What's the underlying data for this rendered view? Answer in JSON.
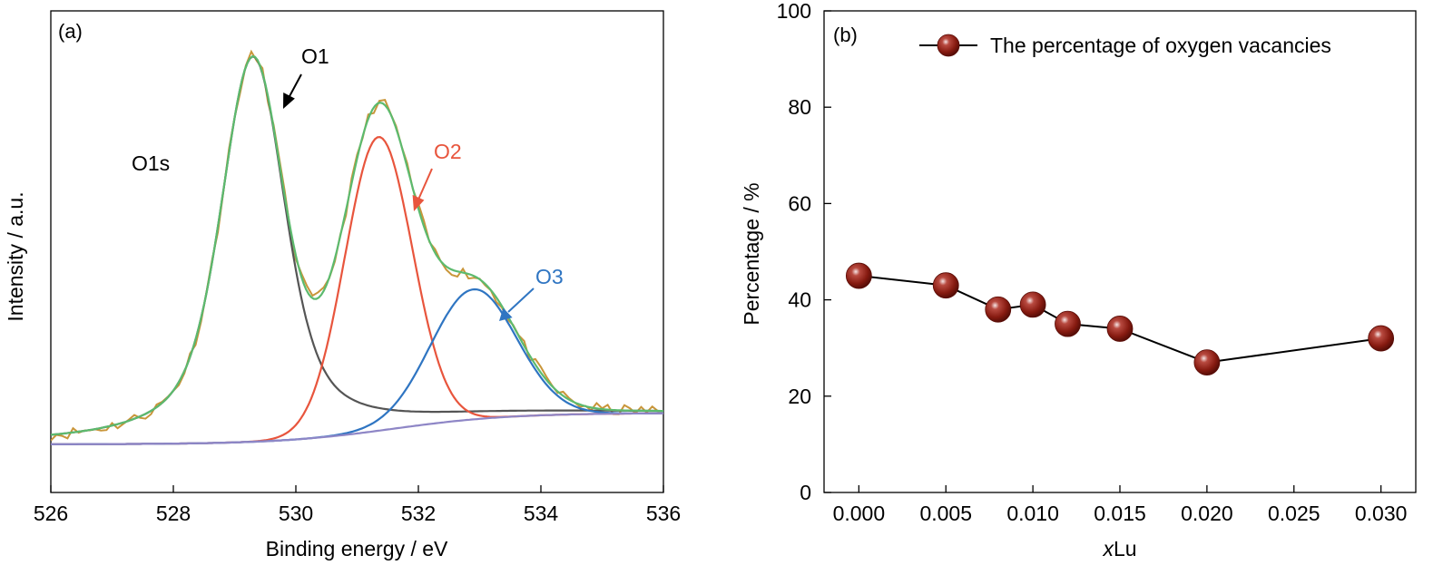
{
  "chart_data": [
    {
      "type": "line",
      "panel_label": "(a)",
      "xlabel": "Binding energy / eV",
      "ylabel": "Intensity / a.u.",
      "xlim": [
        526,
        536
      ],
      "ylim": [
        0,
        1.0
      ],
      "x_ticks": [
        526,
        528,
        530,
        532,
        534,
        536
      ],
      "y_ticks_shown": false,
      "grid": false,
      "legend": "none",
      "annotations": [
        {
          "text": "O1s",
          "color": "#000000"
        },
        {
          "text": "O1",
          "color": "#000000",
          "points_to": [
            529.8,
            0.868
          ]
        },
        {
          "text": "O2",
          "color": "#e8553d",
          "points_to": [
            531.6,
            0.68
          ]
        },
        {
          "text": "O3",
          "color": "#2f75c2",
          "points_to": [
            533.4,
            0.358
          ]
        }
      ],
      "series": [
        {
          "color": "#ffffff",
          "kind": "measured",
          "noise_amplitude": 0.012
        },
        {
          "color": "#5cba6e",
          "kind": "envelope"
        },
        {
          "color": "#555555",
          "kind": "peak",
          "center": 529.3,
          "height": 0.8,
          "sigma": 0.48,
          "gamma": 0.75
        },
        {
          "color": "#e8553d",
          "kind": "peak",
          "center": 531.35,
          "height": 0.61,
          "sigma": 0.55
        },
        {
          "color": "#2f75c2",
          "kind": "peak",
          "center": 532.9,
          "height": 0.27,
          "sigma": 0.7
        },
        {
          "color": "#8e86c6",
          "kind": "background",
          "start": 0.1,
          "end": 0.165
        }
      ]
    },
    {
      "type": "line",
      "panel_label": "(b)",
      "xlabel_prefix": "x",
      "xlabel_suffix": "Lu",
      "ylabel": "Percentage / %",
      "xlim": [
        -0.002,
        0.032
      ],
      "ylim": [
        0,
        100
      ],
      "x_ticks": [
        "0.000",
        "0.005",
        "0.010",
        "0.015",
        "0.020",
        "0.025",
        "0.030"
      ],
      "y_ticks": [
        0,
        20,
        40,
        60,
        80,
        100
      ],
      "grid": false,
      "legend": "top-right",
      "series": [
        {
          "name": "The percentage of oxygen vacancies",
          "color": "#8a1c10",
          "x": [
            0.0,
            0.005,
            0.008,
            0.01,
            0.012,
            0.015,
            0.02,
            0.03
          ],
          "y": [
            45,
            43,
            38,
            39,
            35,
            34,
            27,
            32
          ]
        }
      ]
    }
  ]
}
